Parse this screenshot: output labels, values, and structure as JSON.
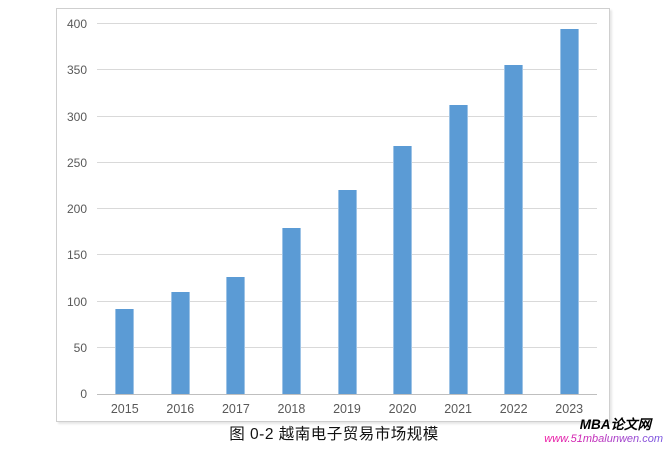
{
  "caption": "图 0-2 越南电子贸易市场规模",
  "watermark": {
    "brand": "MBA论文网",
    "url": "www.51mbalunwen.com"
  },
  "colors": {
    "bar_fill": "#5b9bd5",
    "bar_edge": "#9dc3e6",
    "gridline": "#d9d9d9",
    "axis_line": "#bfbfbf",
    "tick_label": "#595959",
    "caption_text": "#111111",
    "watermark_brand": "#000000",
    "url_gradient_start": "#ee1ba5",
    "url_gradient_end": "#7e57e0"
  },
  "chart_data": {
    "type": "bar",
    "categories": [
      "2015",
      "2016",
      "2017",
      "2018",
      "2019",
      "2020",
      "2021",
      "2022",
      "2023"
    ],
    "values": [
      92,
      110,
      127,
      179,
      221,
      268,
      312,
      356,
      395
    ],
    "title": "图 0-2 越南电子贸易市场规模",
    "xlabel": "",
    "ylabel": "",
    "ylim": [
      0,
      400
    ],
    "ytick_step": 50,
    "grid": true,
    "legend": false
  }
}
